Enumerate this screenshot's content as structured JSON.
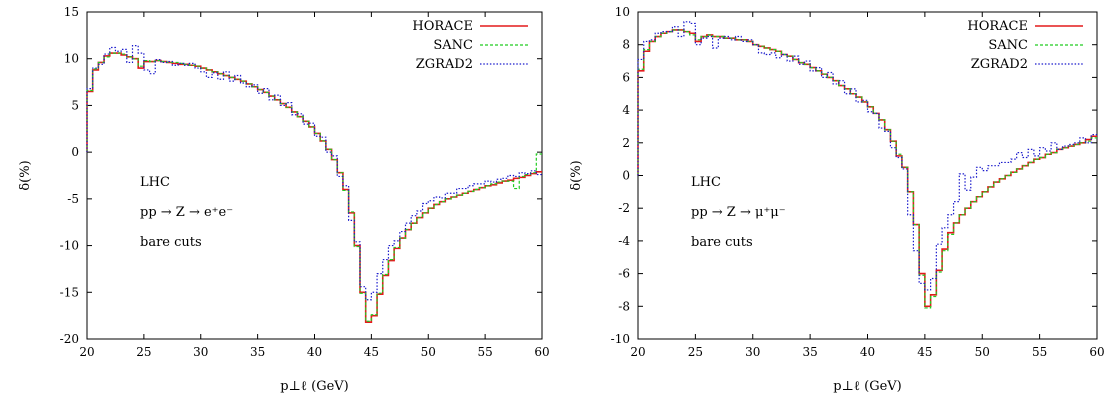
{
  "chart_data": [
    {
      "type": "line",
      "xlabel": "p⊥ℓ (GeV)",
      "ylabel": "δ(%)",
      "xlim": [
        20,
        60
      ],
      "ylim": [
        -20,
        15
      ],
      "x_ticks": [
        "20",
        "25",
        "30",
        "35",
        "40",
        "45",
        "50",
        "55",
        "60"
      ],
      "y_ticks": [
        "-20",
        "-15",
        "-10",
        "-5",
        "0",
        "5",
        "10",
        "15"
      ],
      "annotations": [
        "LHC",
        "pp → Z → e⁺e⁻",
        "bare cuts"
      ],
      "legend_position": "top-right",
      "x": [
        20,
        20.5,
        21,
        21.5,
        22,
        22.5,
        23,
        23.5,
        24,
        24.5,
        25,
        25.5,
        26,
        26.5,
        27,
        27.5,
        28,
        28.5,
        29,
        29.5,
        30,
        30.5,
        31,
        31.5,
        32,
        32.5,
        33,
        33.5,
        34,
        34.5,
        35,
        35.5,
        36,
        36.5,
        37,
        37.5,
        38,
        38.5,
        39,
        39.5,
        40,
        40.5,
        41,
        41.5,
        42,
        42.5,
        43,
        43.5,
        44,
        44.5,
        45,
        45.5,
        46,
        46.5,
        47,
        47.5,
        48,
        48.5,
        49,
        49.5,
        50,
        50.5,
        51,
        51.5,
        52,
        52.5,
        53,
        53.5,
        54,
        54.5,
        55,
        55.5,
        56,
        56.5,
        57,
        57.5,
        58,
        58.5,
        59,
        59.5
      ],
      "series": [
        {
          "name": "HORACE",
          "color": "#e41a1c",
          "dash": "solid",
          "values": [
            6.5,
            8.8,
            9.6,
            10.3,
            10.6,
            10.6,
            10.4,
            10.2,
            10.0,
            9.0,
            9.7,
            9.7,
            9.8,
            9.7,
            9.6,
            9.5,
            9.4,
            9.4,
            9.3,
            9.2,
            9.0,
            8.8,
            8.6,
            8.4,
            8.2,
            8.0,
            7.8,
            7.6,
            7.3,
            7.0,
            6.7,
            6.4,
            6.0,
            5.6,
            5.2,
            4.8,
            4.3,
            3.8,
            3.3,
            2.7,
            2.0,
            1.2,
            0.3,
            -0.8,
            -2.2,
            -4.0,
            -6.5,
            -10.0,
            -15.0,
            -18.2,
            -17.5,
            -15.2,
            -13.2,
            -11.6,
            -10.3,
            -9.2,
            -8.3,
            -7.6,
            -7.0,
            -6.5,
            -6.0,
            -5.6,
            -5.3,
            -5.0,
            -4.8,
            -4.6,
            -4.4,
            -4.2,
            -4.0,
            -3.8,
            -3.6,
            -3.5,
            -3.3,
            -3.1,
            -3.0,
            -2.8,
            -2.7,
            -2.5,
            -2.3,
            -2.1
          ]
        },
        {
          "name": "SANC",
          "color": "#22cc22",
          "dash": "3,2",
          "values": [
            6.6,
            8.9,
            9.6,
            10.2,
            10.6,
            10.6,
            10.5,
            10.2,
            10.0,
            9.2,
            9.8,
            9.7,
            9.8,
            9.7,
            9.6,
            9.6,
            9.5,
            9.4,
            9.3,
            9.2,
            9.0,
            8.8,
            8.6,
            8.4,
            8.2,
            8.0,
            7.8,
            7.6,
            7.3,
            7.0,
            6.7,
            6.4,
            6.0,
            5.6,
            5.2,
            4.8,
            4.3,
            3.8,
            3.3,
            2.7,
            2.0,
            1.2,
            0.3,
            -0.8,
            -2.2,
            -4.1,
            -6.4,
            -10.1,
            -15.1,
            -18.1,
            -17.4,
            -15.1,
            -13.1,
            -11.5,
            -10.2,
            -9.2,
            -8.3,
            -7.6,
            -7.0,
            -6.5,
            -6.0,
            -5.6,
            -5.3,
            -5.0,
            -4.8,
            -4.6,
            -4.4,
            -4.2,
            -4.0,
            -3.8,
            -3.6,
            -3.4,
            -3.2,
            -3.1,
            -3.1,
            -3.9,
            -2.6,
            -2.4,
            -2.2,
            -0.2
          ]
        },
        {
          "name": "ZGRAD2",
          "color": "#1a1acc",
          "dash": "1.5,1.8",
          "values": [
            6.8,
            9.0,
            9.4,
            10.5,
            11.2,
            10.8,
            11.0,
            9.6,
            11.4,
            10.6,
            8.8,
            8.4,
            9.9,
            9.6,
            9.7,
            9.3,
            9.5,
            9.3,
            9.5,
            9.0,
            8.6,
            8.0,
            8.5,
            7.8,
            8.6,
            7.6,
            8.2,
            7.4,
            7.0,
            7.2,
            6.3,
            6.8,
            5.6,
            6.1,
            5.0,
            5.3,
            4.0,
            4.1,
            3.0,
            3.1,
            1.7,
            1.6,
            0.0,
            -0.4,
            -2.6,
            -3.6,
            -7.3,
            -9.6,
            -14.4,
            -15.8,
            -15.0,
            -13.0,
            -11.5,
            -10.0,
            -9.5,
            -8.5,
            -7.6,
            -6.8,
            -6.3,
            -5.5,
            -5.2,
            -4.8,
            -4.9,
            -4.4,
            -4.4,
            -3.9,
            -3.9,
            -3.6,
            -3.4,
            -3.4,
            -3.1,
            -3.2,
            -2.9,
            -2.8,
            -2.5,
            -2.6,
            -2.2,
            -2.3,
            -2.0,
            -2.4
          ]
        }
      ]
    },
    {
      "type": "line",
      "xlabel": "p⊥ℓ (GeV)",
      "ylabel": "δ(%)",
      "xlim": [
        20,
        60
      ],
      "ylim": [
        -10,
        10
      ],
      "x_ticks": [
        "20",
        "25",
        "30",
        "35",
        "40",
        "45",
        "50",
        "55",
        "60"
      ],
      "y_ticks": [
        "-10",
        "-8",
        "-6",
        "-4",
        "-2",
        "0",
        "2",
        "4",
        "6",
        "8",
        "10"
      ],
      "annotations": [
        "LHC",
        "pp → Z → μ⁺μ⁻",
        "bare cuts"
      ],
      "legend_position": "top-right",
      "x": [
        20,
        20.5,
        21,
        21.5,
        22,
        22.5,
        23,
        23.5,
        24,
        24.5,
        25,
        25.5,
        26,
        26.5,
        27,
        27.5,
        28,
        28.5,
        29,
        29.5,
        30,
        30.5,
        31,
        31.5,
        32,
        32.5,
        33,
        33.5,
        34,
        34.5,
        35,
        35.5,
        36,
        36.5,
        37,
        37.5,
        38,
        38.5,
        39,
        39.5,
        40,
        40.5,
        41,
        41.5,
        42,
        42.5,
        43,
        43.5,
        44,
        44.5,
        45,
        45.5,
        46,
        46.5,
        47,
        47.5,
        48,
        48.5,
        49,
        49.5,
        50,
        50.5,
        51,
        51.5,
        52,
        52.5,
        53,
        53.5,
        54,
        54.5,
        55,
        55.5,
        56,
        56.5,
        57,
        57.5,
        58,
        58.5,
        59,
        59.5
      ],
      "series": [
        {
          "name": "HORACE",
          "color": "#e41a1c",
          "dash": "solid",
          "values": [
            6.4,
            7.6,
            8.2,
            8.5,
            8.7,
            8.8,
            8.9,
            8.9,
            8.8,
            8.7,
            8.2,
            8.5,
            8.6,
            8.5,
            8.5,
            8.4,
            8.4,
            8.3,
            8.3,
            8.2,
            8.0,
            7.9,
            7.8,
            7.7,
            7.6,
            7.4,
            7.3,
            7.1,
            6.9,
            6.8,
            6.6,
            6.4,
            6.2,
            6.0,
            5.8,
            5.5,
            5.3,
            5.0,
            4.8,
            4.5,
            4.2,
            3.8,
            3.4,
            2.8,
            2.1,
            1.2,
            0.5,
            -1.0,
            -3.0,
            -6.0,
            -8.0,
            -7.3,
            -5.8,
            -4.5,
            -3.5,
            -2.9,
            -2.4,
            -2.0,
            -1.6,
            -1.3,
            -1.0,
            -0.7,
            -0.4,
            -0.2,
            0.0,
            0.2,
            0.4,
            0.6,
            0.8,
            1.0,
            1.1,
            1.3,
            1.4,
            1.6,
            1.7,
            1.8,
            1.9,
            2.0,
            2.2,
            2.4
          ]
        },
        {
          "name": "SANC",
          "color": "#22cc22",
          "dash": "3,2",
          "values": [
            6.5,
            7.7,
            8.2,
            8.5,
            8.7,
            8.8,
            8.9,
            8.9,
            8.8,
            8.6,
            8.3,
            8.5,
            8.6,
            8.5,
            8.5,
            8.4,
            8.4,
            8.3,
            8.3,
            8.2,
            8.0,
            7.9,
            7.8,
            7.7,
            7.6,
            7.4,
            7.3,
            7.1,
            6.9,
            6.8,
            6.6,
            6.4,
            6.2,
            6.0,
            5.8,
            5.5,
            5.3,
            5.0,
            4.8,
            4.5,
            4.2,
            3.8,
            3.4,
            2.8,
            2.1,
            1.3,
            0.5,
            -1.0,
            -3.0,
            -6.1,
            -8.1,
            -7.4,
            -5.9,
            -4.6,
            -3.6,
            -2.9,
            -2.4,
            -2.0,
            -1.6,
            -1.3,
            -1.0,
            -0.7,
            -0.4,
            -0.2,
            0.0,
            0.2,
            0.4,
            0.6,
            0.8,
            1.0,
            1.1,
            1.3,
            1.4,
            1.6,
            1.7,
            1.8,
            1.9,
            2.0,
            2.1,
            2.3
          ]
        },
        {
          "name": "ZGRAD2",
          "color": "#1a1acc",
          "dash": "1.5,1.8",
          "values": [
            7.1,
            8.2,
            8.3,
            8.7,
            8.8,
            8.8,
            9.1,
            8.5,
            9.4,
            9.3,
            8.0,
            8.4,
            8.5,
            7.8,
            8.4,
            8.5,
            8.3,
            8.5,
            8.2,
            8.3,
            8.0,
            7.5,
            7.4,
            7.5,
            7.2,
            7.4,
            7.0,
            7.3,
            6.8,
            7.0,
            6.4,
            6.6,
            6.0,
            6.3,
            5.6,
            5.8,
            5.0,
            5.3,
            4.5,
            4.6,
            3.9,
            3.8,
            2.9,
            2.7,
            1.7,
            1.1,
            0.4,
            -2.4,
            -4.6,
            -6.6,
            -7.0,
            -6.3,
            -4.2,
            -3.2,
            -2.4,
            -1.6,
            0.1,
            -0.9,
            -0.1,
            0.5,
            0.3,
            0.6,
            0.6,
            0.8,
            0.8,
            1.0,
            1.4,
            1.1,
            1.6,
            1.2,
            1.7,
            1.5,
            2.0,
            1.6,
            1.8,
            1.9,
            2.0,
            2.3,
            2.0,
            2.5
          ]
        }
      ]
    }
  ]
}
